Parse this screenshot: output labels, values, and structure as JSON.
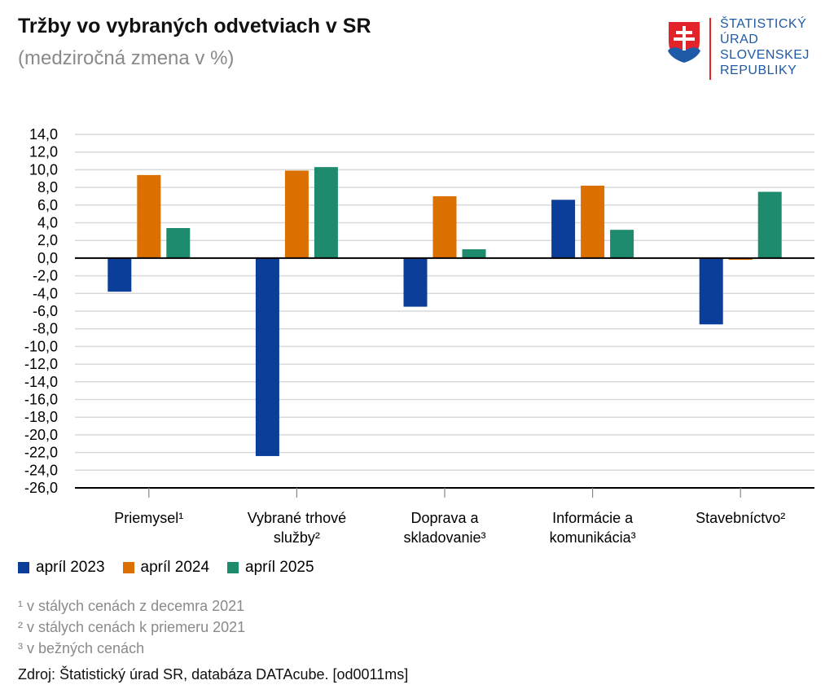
{
  "header": {
    "title": "Tržby vo vybraných odvetviach v SR",
    "subtitle": "(medziročná zmena v %)"
  },
  "logo": {
    "lines": [
      "ŠTATISTICKÝ",
      "ÚRAD",
      "SLOVENSKEJ",
      "REPUBLIKY"
    ],
    "shield_icon": "slovak-coat-of-arms-icon"
  },
  "chart_data": {
    "type": "bar",
    "title": "Tržby vo vybraných odvetviach v SR",
    "subtitle": "(medziročná zmena v %)",
    "categories": [
      [
        "Priemysel¹"
      ],
      [
        "Vybrané trhové",
        "služby²"
      ],
      [
        "Doprava a",
        "skladovanie³"
      ],
      [
        "Informácie a",
        "komunikácia³"
      ],
      [
        "Stavebníctvo²"
      ]
    ],
    "series": [
      {
        "name": "apríl 2023",
        "color": "#0b3e98",
        "values": [
          -3.8,
          -22.4,
          -5.5,
          6.6,
          -7.5
        ]
      },
      {
        "name": "apríl 2024",
        "color": "#db7000",
        "values": [
          9.4,
          9.9,
          7.0,
          8.2,
          -0.2
        ]
      },
      {
        "name": "apríl 2025",
        "color": "#1e8a6e",
        "values": [
          3.4,
          10.3,
          1.0,
          3.2,
          7.5
        ]
      }
    ],
    "ylim": [
      -26,
      14
    ],
    "ytick_step": 2,
    "ytick_labels": [
      "14,0",
      "12,0",
      "10,0",
      "8,0",
      "6,0",
      "4,0",
      "2,0",
      "0,0",
      "-2,0",
      "-4,0",
      "-6,0",
      "-8,0",
      "-10,0",
      "-12,0",
      "-14,0",
      "-16,0",
      "-18,0",
      "-20,0",
      "-22,0",
      "-24,0",
      "-26,0"
    ],
    "grid": true,
    "legend_position": "bottom-left"
  },
  "footnotes": [
    "¹ v stálych cenách z decemra 2021",
    "² v stálych cenách k priemeru 2021",
    "³ v bežných cenách"
  ],
  "source": "Zdroj: Štatistický úrad SR, databáza DATAcube. [od0011ms]"
}
